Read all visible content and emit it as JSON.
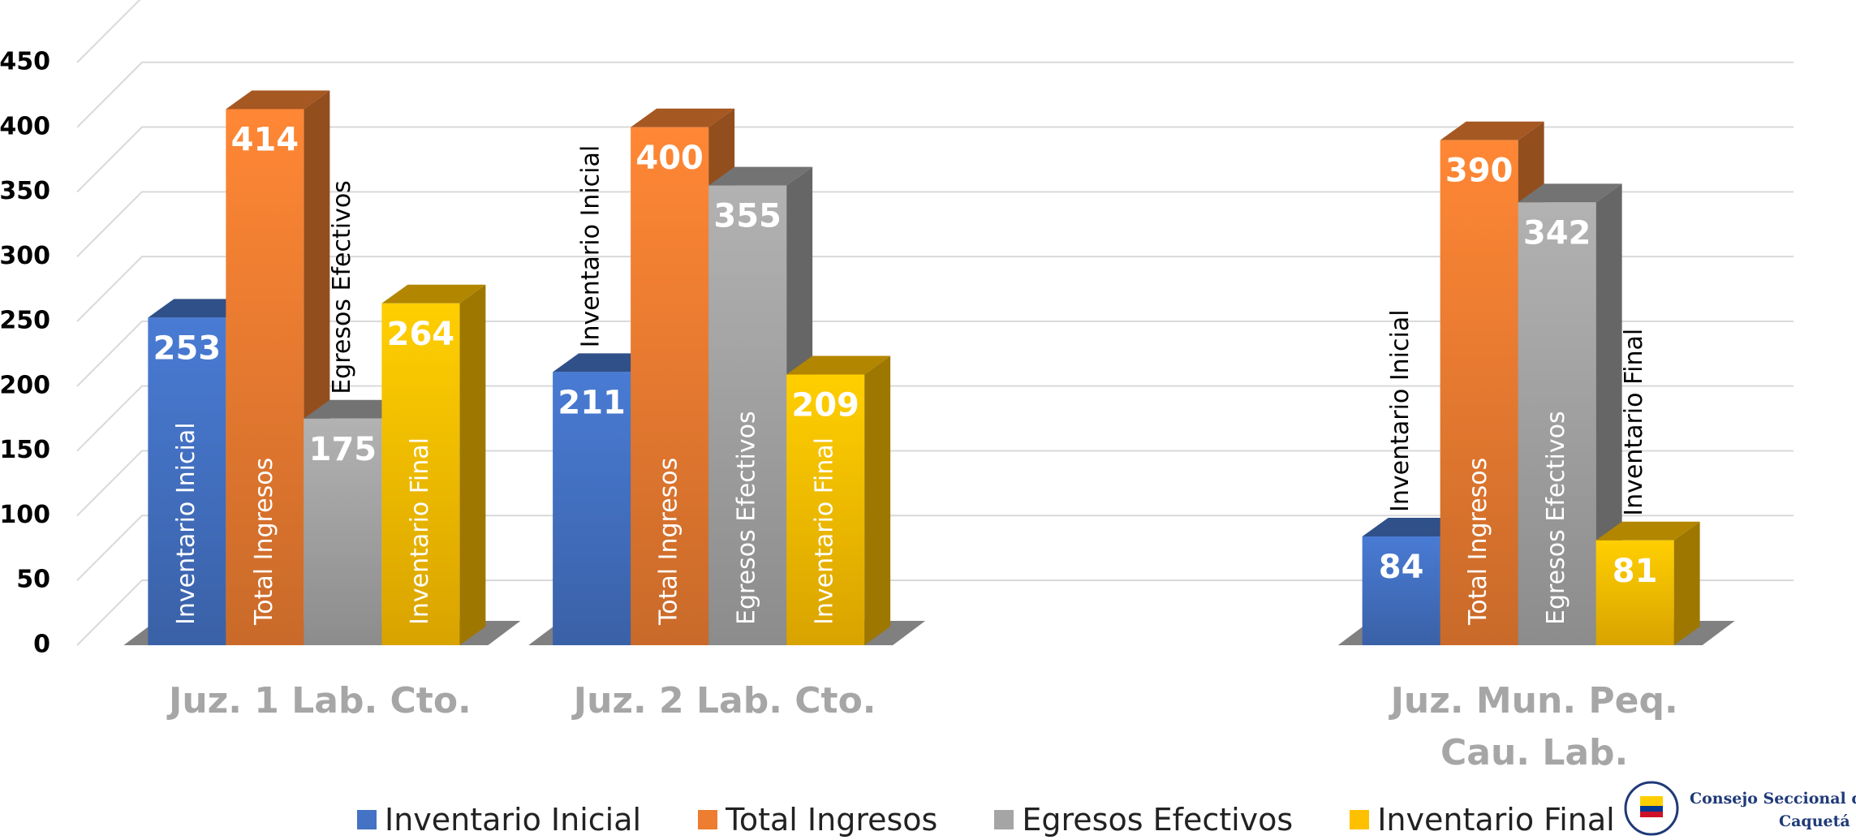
{
  "chart_data": {
    "type": "bar3d",
    "categories": [
      "Juz. 1 Lab. Cto.",
      "Juz. 2 Lab. Cto.",
      null,
      "Juz. Mun. Peq. Cau. Lab."
    ],
    "series": [
      {
        "name": "Inventario Inicial",
        "color": "#4472c4",
        "values": [
          253,
          211,
          null,
          84
        ]
      },
      {
        "name": "Total Ingresos",
        "color": "#ed7d31",
        "values": [
          414,
          400,
          null,
          390
        ]
      },
      {
        "name": "Egresos Efectivos",
        "color": "#a5a5a5",
        "values": [
          175,
          355,
          null,
          342
        ]
      },
      {
        "name": "Inventario Final",
        "color": "#ffc000",
        "values": [
          264,
          209,
          null,
          81
        ]
      }
    ],
    "ylim": [
      0,
      450
    ],
    "yticks": [
      0,
      50,
      100,
      150,
      200,
      250,
      300,
      350,
      400,
      450
    ],
    "grid": true,
    "legend": "bottom"
  },
  "logo": {
    "lines": [
      "Consejo Seccional de",
      "Caquetá"
    ]
  }
}
